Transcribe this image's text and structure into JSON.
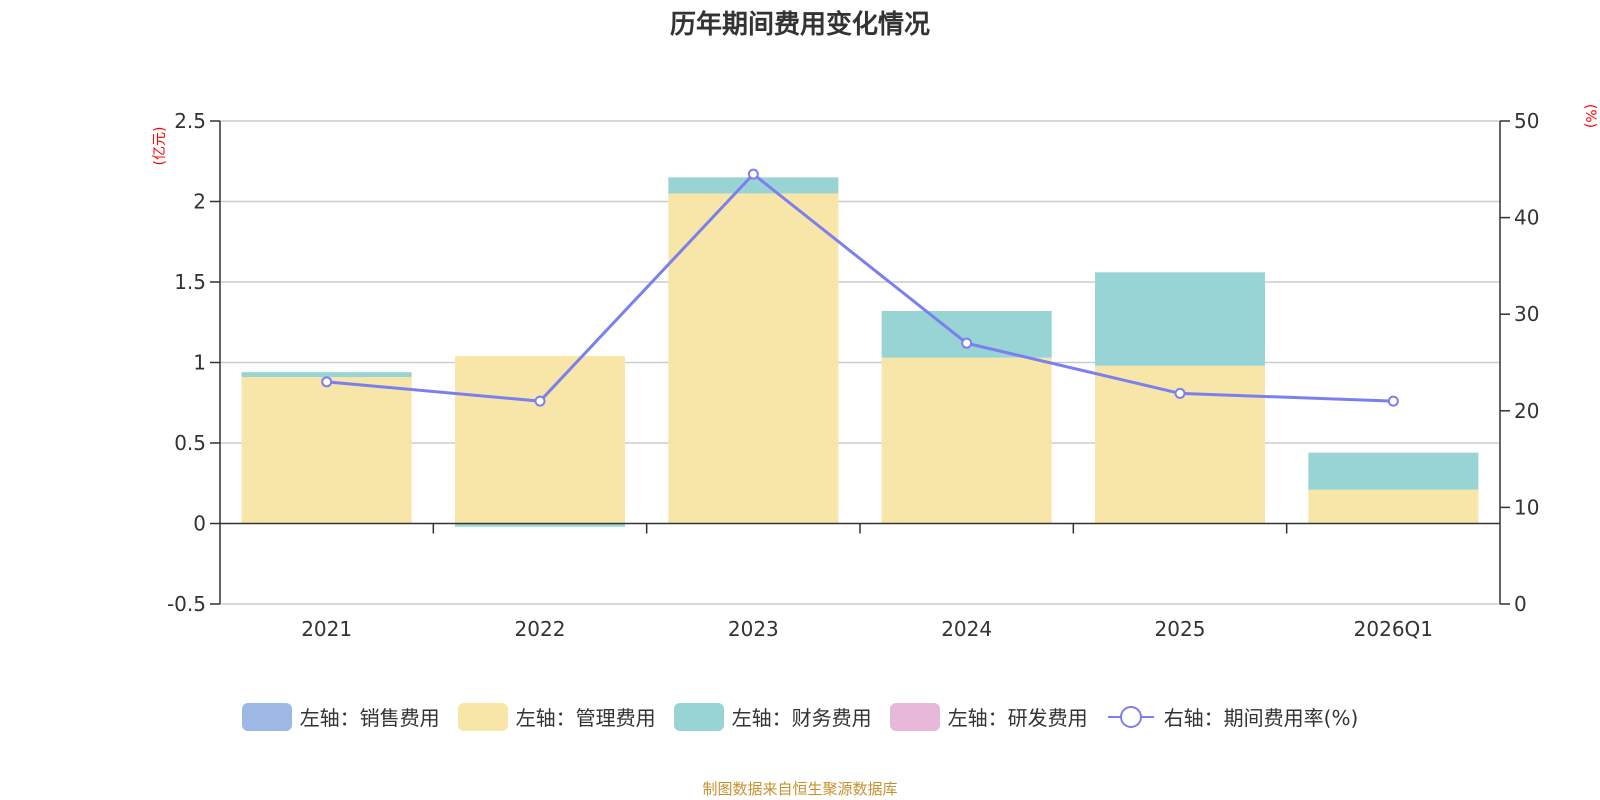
{
  "chart_data": {
    "type": "bar",
    "stacked": true,
    "title": "历年期间费用变化情况",
    "categories": [
      "2021",
      "2022",
      "2023",
      "2024",
      "2025",
      "2026Q1"
    ],
    "left_axis": {
      "unit_label": "(亿元)",
      "ylim": [
        -0.5,
        2.5
      ],
      "ticks": [
        -0.5,
        0,
        0.5,
        1,
        1.5,
        2,
        2.5
      ],
      "tick_labels": [
        "-0.5",
        "0",
        "0.5",
        "1",
        "1.5",
        "2",
        "2.5"
      ]
    },
    "right_axis": {
      "unit_label": "(%)",
      "ylim": [
        0,
        50
      ],
      "ticks": [
        0,
        10,
        20,
        30,
        40,
        50
      ],
      "tick_labels": [
        "0",
        "10",
        "20",
        "30",
        "40",
        "50"
      ]
    },
    "series": [
      {
        "name": "左轴：销售费用",
        "axis": "left",
        "kind": "bar",
        "color": "#9db8e4",
        "values": [
          0,
          0,
          0,
          0,
          0,
          0
        ]
      },
      {
        "name": "左轴：管理费用",
        "axis": "left",
        "kind": "bar",
        "color": "#f7e6a7",
        "values": [
          0.91,
          1.04,
          2.05,
          1.03,
          0.98,
          0.21
        ]
      },
      {
        "name": "左轴：财务费用",
        "axis": "left",
        "kind": "bar",
        "color": "#98d4d4",
        "values": [
          0.03,
          -0.02,
          0.1,
          0.29,
          0.58,
          0.23
        ]
      },
      {
        "name": "左轴：研发费用",
        "axis": "left",
        "kind": "bar",
        "color": "#e8b8da",
        "values": [
          0,
          0,
          0,
          0,
          0,
          0
        ]
      },
      {
        "name": "右轴：期间费用率(%)",
        "axis": "right",
        "kind": "line",
        "color": "#7b7fef",
        "values": [
          23.0,
          21.0,
          44.5,
          27.0,
          21.8,
          21.0
        ]
      }
    ]
  },
  "source_note": "制图数据来自恒生聚源数据库"
}
